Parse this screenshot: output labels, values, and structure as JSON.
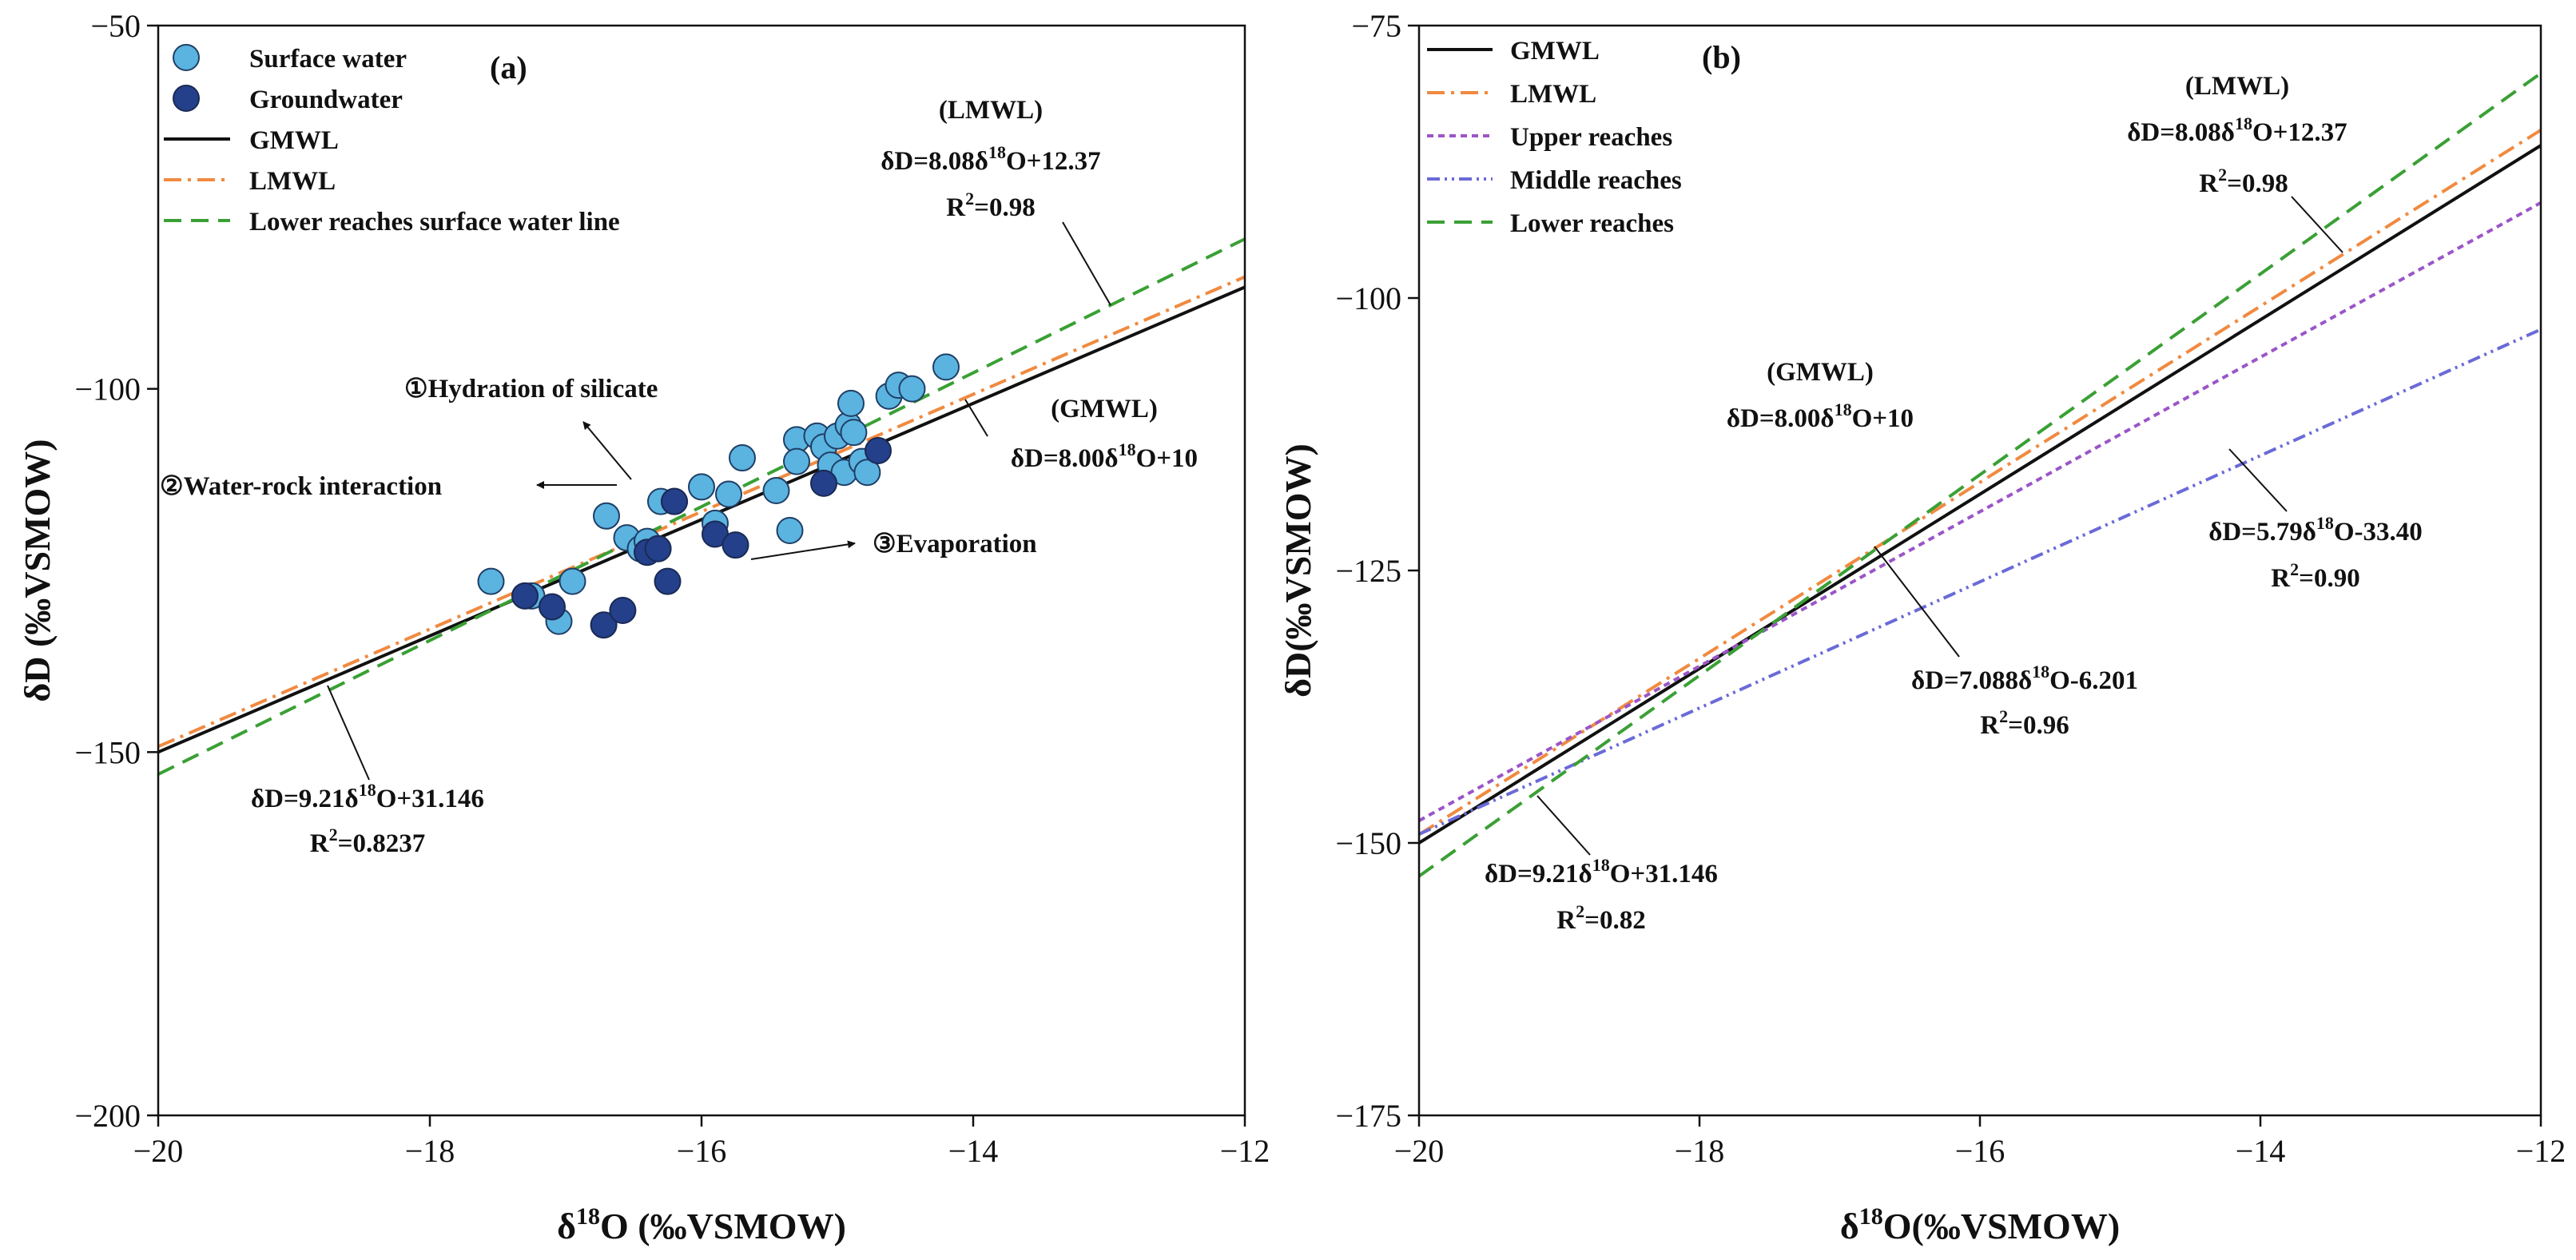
{
  "chart_data": [
    {
      "type": "scatter",
      "panel_label": "(a)",
      "xlabel": "δ",
      "xlabel_sup": "18",
      "xlabel_rest": "O (‰VSMOW)",
      "ylabel": "δD (‰VSMOW)",
      "xlim": [
        -20,
        -12
      ],
      "ylim": [
        -200,
        -50
      ],
      "xticks": [
        -20,
        -18,
        -16,
        -14,
        -12
      ],
      "yticks": [
        -200,
        -150,
        -100,
        -50
      ],
      "xtick_labels": [
        "−20",
        "−18",
        "−16",
        "−14",
        "−12"
      ],
      "ytick_labels": [
        "−200",
        "−150",
        "−100",
        "−50"
      ],
      "legend": {
        "surface": "Surface water",
        "ground": "Groundwater",
        "gmwl": "GMWL",
        "lmwl": "LMWL",
        "lower": "Lower reaches surface water line"
      },
      "scatter_series": [
        {
          "name": "Surface water",
          "color": "#5bb3e0",
          "points": [
            [
              -17.55,
              -126.5
            ],
            [
              -17.25,
              -128.5
            ],
            [
              -17.05,
              -132
            ],
            [
              -16.95,
              -126.5
            ],
            [
              -16.7,
              -117.5
            ],
            [
              -16.55,
              -120.5
            ],
            [
              -16.45,
              -122
            ],
            [
              -16.4,
              -121
            ],
            [
              -16.3,
              -115.5
            ],
            [
              -16.2,
              -115.5
            ],
            [
              -16.0,
              -113.5
            ],
            [
              -15.9,
              -118.5
            ],
            [
              -15.8,
              -114.5
            ],
            [
              -15.7,
              -109.5
            ],
            [
              -15.45,
              -114
            ],
            [
              -15.35,
              -119.5
            ],
            [
              -15.3,
              -107
            ],
            [
              -15.3,
              -110
            ],
            [
              -15.15,
              -106.5
            ],
            [
              -15.1,
              -108
            ],
            [
              -15.05,
              -110.5
            ],
            [
              -15.0,
              -106.5
            ],
            [
              -14.95,
              -111.5
            ],
            [
              -14.92,
              -105
            ],
            [
              -14.9,
              -102
            ],
            [
              -14.88,
              -106
            ],
            [
              -14.82,
              -110
            ],
            [
              -14.78,
              -111.5
            ],
            [
              -14.62,
              -101
            ],
            [
              -14.55,
              -99.5
            ],
            [
              -14.45,
              -100
            ],
            [
              -14.2,
              -97
            ]
          ]
        },
        {
          "name": "Groundwater",
          "color": "#24408a",
          "points": [
            [
              -17.3,
              -128.5
            ],
            [
              -17.1,
              -130
            ],
            [
              -16.72,
              -132.5
            ],
            [
              -16.58,
              -130.5
            ],
            [
              -16.4,
              -122.5
            ],
            [
              -16.32,
              -122
            ],
            [
              -16.25,
              -126.5
            ],
            [
              -16.2,
              -115.5
            ],
            [
              -15.9,
              -120
            ],
            [
              -15.75,
              -121.5
            ],
            [
              -15.1,
              -113
            ],
            [
              -14.7,
              -108.5
            ]
          ]
        }
      ],
      "lines": [
        {
          "name": "GMWL",
          "slope": 8.0,
          "intercept": 10,
          "color": "#111111",
          "dash": "solid"
        },
        {
          "name": "LMWL",
          "slope": 8.08,
          "intercept": 12.37,
          "color": "#f08a40",
          "dash": "dashdot"
        },
        {
          "name": "Lower reaches surface water line",
          "slope": 9.21,
          "intercept": 31.146,
          "color": "#3aa035",
          "dash": "dashed"
        }
      ],
      "annotations": {
        "lmwl_title": "(LMWL)",
        "lmwl_eq_a": "δD=8.08δ",
        "lmwl_eq_b": "O+12.37",
        "lmwl_r2_a": "R",
        "lmwl_r2_b": "=0.98",
        "gmwl_title": "(GMWL)",
        "gmwl_eq_a": "δD=8.00δ",
        "gmwl_eq_b": "O+10",
        "lower_eq_a": "δD=9.21δ",
        "lower_eq_b": "O+31.146",
        "lower_r2_a": "R",
        "lower_r2_b": "=0.8237",
        "hydration": "①Hydration of silicate",
        "waterrock": "②Water-rock interaction",
        "evaporation": "③Evaporation",
        "sup18": "18",
        "sup2": "2"
      }
    },
    {
      "type": "line",
      "panel_label": "(b)",
      "xlabel": "δ",
      "xlabel_sup": "18",
      "xlabel_rest": "O(‰VSMOW)",
      "ylabel": "δD(‰VSMOW)",
      "xlim": [
        -20,
        -12
      ],
      "ylim": [
        -175,
        -75
      ],
      "xticks": [
        -20,
        -18,
        -16,
        -14,
        -12
      ],
      "yticks": [
        -175,
        -150,
        -125,
        -100,
        -75
      ],
      "xtick_labels": [
        "−20",
        "−18",
        "−16",
        "−14",
        "−12"
      ],
      "ytick_labels": [
        "−175",
        "−150",
        "−125",
        "−100",
        "−75"
      ],
      "legend": {
        "gmwl": "GMWL",
        "lmwl": "LMWL",
        "upper": "Upper reaches",
        "middle": "Middle reaches",
        "lower": "Lower reaches"
      },
      "lines": [
        {
          "name": "GMWL",
          "slope": 8.0,
          "intercept": 10,
          "color": "#111111",
          "dash": "solid"
        },
        {
          "name": "LMWL",
          "slope": 8.08,
          "intercept": 12.37,
          "color": "#f08a40",
          "dash": "dashdot"
        },
        {
          "name": "Upper reaches",
          "slope": 7.088,
          "intercept": -6.201,
          "color": "#9b55c8",
          "dash": "dotted"
        },
        {
          "name": "Middle reaches",
          "slope": 5.79,
          "intercept": -33.4,
          "color": "#6a6ad8",
          "dash": "dashdotdot"
        },
        {
          "name": "Lower reaches",
          "slope": 9.21,
          "intercept": 31.146,
          "color": "#3aa035",
          "dash": "dashed"
        }
      ],
      "annotations": {
        "lmwl_title": "(LMWL)",
        "lmwl_eq_a": "δD=8.08δ",
        "lmwl_eq_b": "O+12.37",
        "lmwl_r2_a": "R",
        "lmwl_r2_b": "=0.98",
        "gmwl_title": "(GMWL)",
        "gmwl_eq_a": "δD=8.00δ",
        "gmwl_eq_b": "O+10",
        "middle_eq_a": "δD=5.79δ",
        "middle_eq_b": "O-33.40",
        "middle_r2_a": "R",
        "middle_r2_b": "=0.90",
        "upper_eq_a": "δD=7.088δ",
        "upper_eq_b": "O-6.201",
        "upper_r2_a": "R",
        "upper_r2_b": "=0.96",
        "lower_eq_a": "δD=9.21δ",
        "lower_eq_b": "O+31.146",
        "lower_r2_a": "R",
        "lower_r2_b": "=0.82",
        "sup18": "18",
        "sup2": "2"
      }
    }
  ]
}
